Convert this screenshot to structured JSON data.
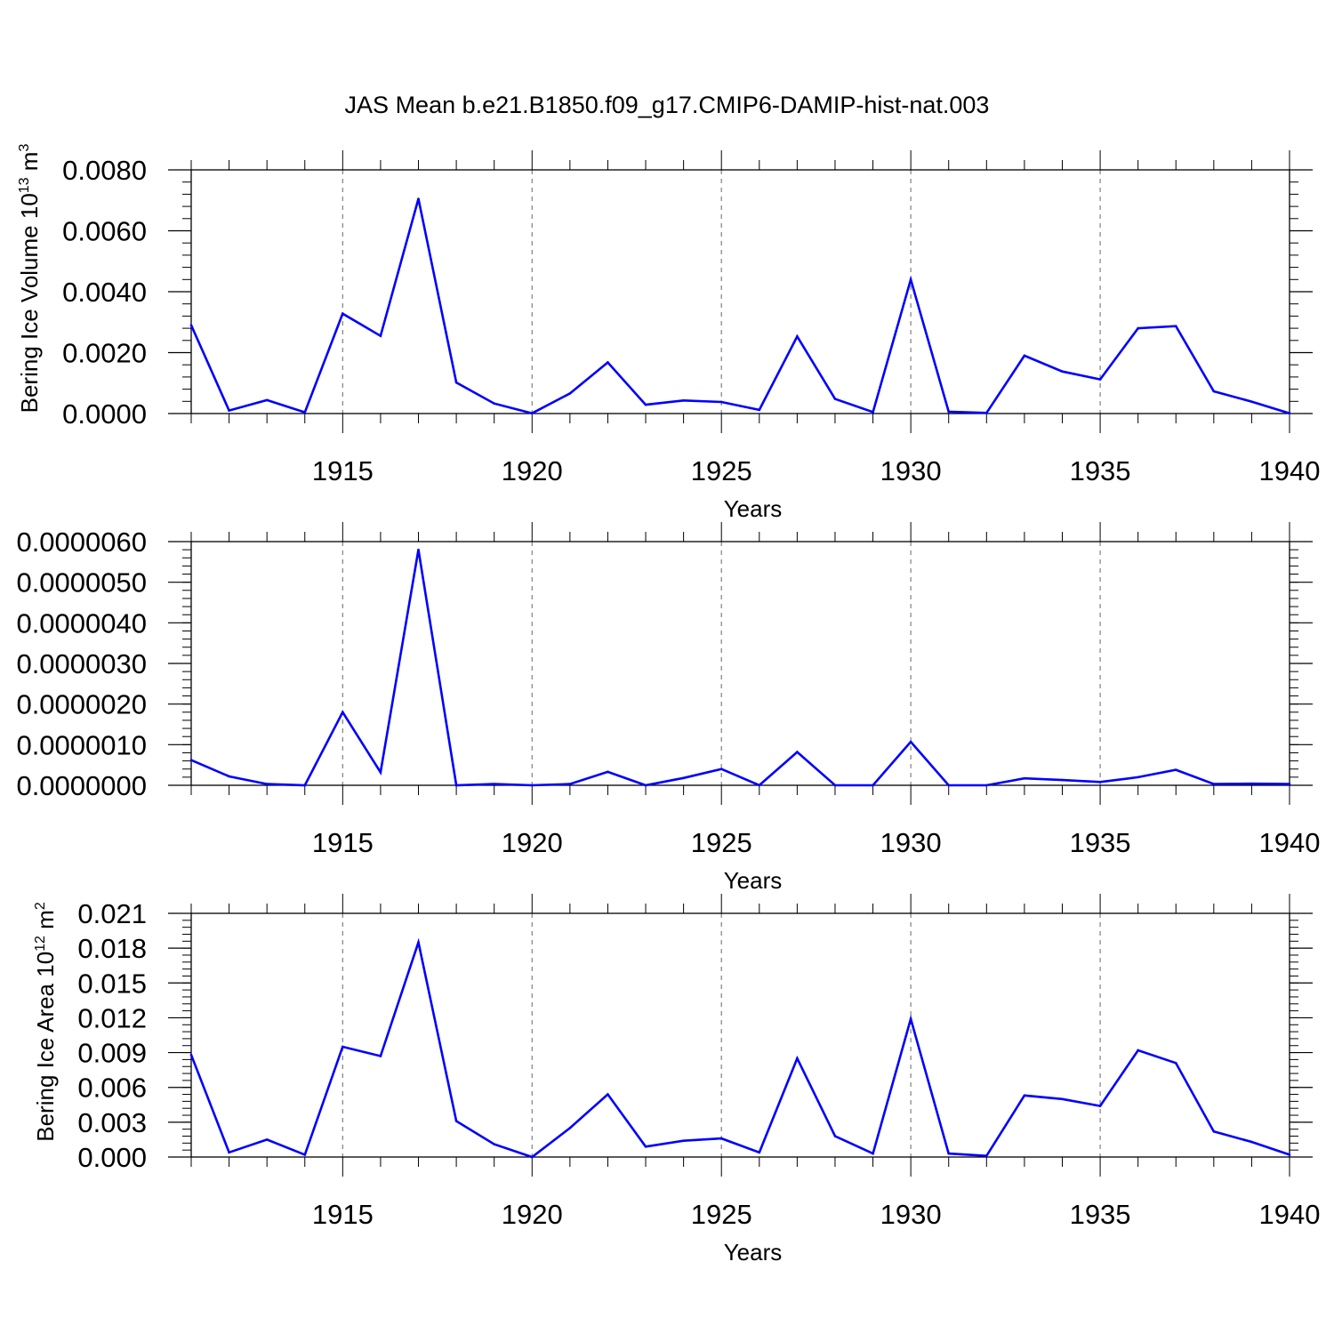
{
  "figure_title": "JAS Mean b.e21.B1850.f09_g17.CMIP6-DAMIP-hist-nat.003",
  "colors": {
    "series": "#0000ff",
    "axis": "#000000",
    "grid": "#808080"
  },
  "chart_data": [
    {
      "type": "line",
      "title": "JAS Mean b.e21.B1850.f09_g17.CMIP6-DAMIP-hist-nat.003",
      "xlabel": "Years",
      "ylabel": {
        "prefix": "Bering Ice Volume 10",
        "exponent": "13",
        "unit": " m",
        "unit_exponent": "3"
      },
      "xlim": [
        1911,
        1940
      ],
      "ylim": [
        0,
        0.008
      ],
      "xticks": [
        1915,
        1920,
        1925,
        1930,
        1935,
        1940
      ],
      "yticks": [
        0,
        0.002,
        0.004,
        0.006,
        0.008
      ],
      "ytick_labels": [
        "0.0000",
        "0.0020",
        "0.0040",
        "0.0060",
        "0.0080"
      ],
      "y_minor_step": 0.0004,
      "grid": "vertical dashed at major x ticks",
      "x": [
        1911,
        1912,
        1913,
        1914,
        1915,
        1916,
        1917,
        1918,
        1919,
        1920,
        1921,
        1922,
        1923,
        1924,
        1925,
        1926,
        1927,
        1928,
        1929,
        1930,
        1931,
        1932,
        1933,
        1934,
        1935,
        1936,
        1937,
        1938,
        1939,
        1940
      ],
      "values": [
        0.0029,
        0.0001,
        0.00044,
        4e-05,
        0.00328,
        0.00255,
        0.00705,
        0.00102,
        0.00033,
        1e-05,
        0.00066,
        0.00168,
        0.00029,
        0.00043,
        0.00038,
        0.00012,
        0.00253,
        0.00048,
        5e-05,
        0.0044,
        6e-05,
        2e-05,
        0.0019,
        0.00138,
        0.00112,
        0.0028,
        0.00287,
        0.00073,
        0.00039,
        1e-05
      ]
    },
    {
      "type": "line",
      "title": "",
      "xlabel": "Years",
      "ylabel": null,
      "xlim": [
        1911,
        1940
      ],
      "ylim": [
        0,
        6e-06
      ],
      "xticks": [
        1915,
        1920,
        1925,
        1930,
        1935,
        1940
      ],
      "yticks": [
        0,
        1e-06,
        2e-06,
        3e-06,
        4e-06,
        5e-06,
        6e-06
      ],
      "ytick_labels": [
        "0.0000000",
        "0.0000010",
        "0.0000020",
        "0.0000030",
        "0.0000040",
        "0.0000050",
        "0.0000060"
      ],
      "y_minor_step": 2e-07,
      "grid": "vertical dashed at major x ticks",
      "x": [
        1911,
        1912,
        1913,
        1914,
        1915,
        1916,
        1917,
        1918,
        1919,
        1920,
        1921,
        1922,
        1923,
        1924,
        1925,
        1926,
        1927,
        1928,
        1929,
        1930,
        1931,
        1932,
        1933,
        1934,
        1935,
        1936,
        1937,
        1938,
        1939,
        1940
      ],
      "values": [
        6.2e-07,
        2.2e-07,
        3e-08,
        0.0,
        1.8e-06,
        3.2e-07,
        5.8e-06,
        0.0,
        3e-08,
        0.0,
        3e-08,
        3.3e-07,
        0.0,
        1.8e-07,
        4e-07,
        0.0,
        8.2e-07,
        0.0,
        0.0,
        1.07e-06,
        0.0,
        0.0,
        1.7e-07,
        1.3e-07,
        8e-08,
        2e-07,
        3.8e-07,
        3e-08,
        4e-08,
        3e-08
      ]
    },
    {
      "type": "line",
      "title": "",
      "xlabel": "Years",
      "ylabel": {
        "prefix": "Bering Ice Area 10",
        "exponent": "12",
        "unit": " m",
        "unit_exponent": "2"
      },
      "xlim": [
        1911,
        1940
      ],
      "ylim": [
        0,
        0.021
      ],
      "xticks": [
        1915,
        1920,
        1925,
        1930,
        1935,
        1940
      ],
      "yticks": [
        0,
        0.003,
        0.006,
        0.009,
        0.012,
        0.015,
        0.018,
        0.021
      ],
      "ytick_labels": [
        "0.000",
        "0.003",
        "0.006",
        "0.009",
        "0.012",
        "0.015",
        "0.018",
        "0.021"
      ],
      "y_minor_step": 0.0006,
      "grid": "vertical dashed at major x ticks",
      "x": [
        1911,
        1912,
        1913,
        1914,
        1915,
        1916,
        1917,
        1918,
        1919,
        1920,
        1921,
        1922,
        1923,
        1924,
        1925,
        1926,
        1927,
        1928,
        1929,
        1930,
        1931,
        1932,
        1933,
        1934,
        1935,
        1936,
        1937,
        1938,
        1939,
        1940
      ],
      "values": [
        0.0088,
        0.0004,
        0.0015,
        0.0002,
        0.0095,
        0.0087,
        0.0185,
        0.0031,
        0.0011,
        0.0,
        0.0025,
        0.0054,
        0.0009,
        0.0014,
        0.0016,
        0.0004,
        0.0085,
        0.0018,
        0.0003,
        0.0119,
        0.0003,
        0.0001,
        0.0053,
        0.005,
        0.0044,
        0.0092,
        0.0081,
        0.0022,
        0.0013,
        0.0002
      ]
    }
  ]
}
